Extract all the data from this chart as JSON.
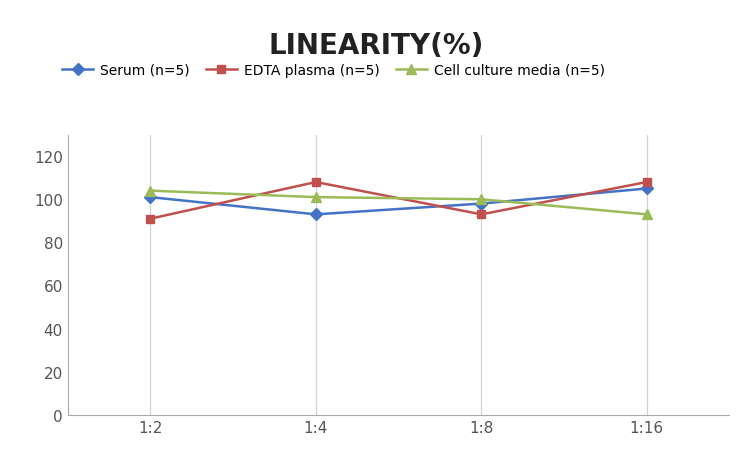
{
  "title": "LINEARITY(%)",
  "x_labels": [
    "1:2",
    "1:4",
    "1:8",
    "1:16"
  ],
  "x_positions": [
    0,
    1,
    2,
    3
  ],
  "series": [
    {
      "name": "Serum (n=5)",
      "values": [
        101,
        93,
        98,
        105
      ],
      "color": "#4472C4",
      "marker": "D",
      "markersize": 6,
      "linewidth": 1.8
    },
    {
      "name": "EDTA plasma (n=5)",
      "values": [
        91,
        108,
        93,
        108
      ],
      "color": "#C0504D",
      "marker": "s",
      "markersize": 6,
      "linewidth": 1.8
    },
    {
      "name": "Cell culture media (n=5)",
      "values": [
        104,
        101,
        100,
        93
      ],
      "color": "#9BBB59",
      "marker": "^",
      "markersize": 7,
      "linewidth": 1.8
    }
  ],
  "ylim": [
    0,
    130
  ],
  "yticks": [
    0,
    20,
    40,
    60,
    80,
    100,
    120
  ],
  "background_color": "#ffffff",
  "grid_color": "#d3d3d3",
  "title_fontsize": 20,
  "title_fontweight": "bold",
  "legend_fontsize": 10,
  "tick_fontsize": 11
}
